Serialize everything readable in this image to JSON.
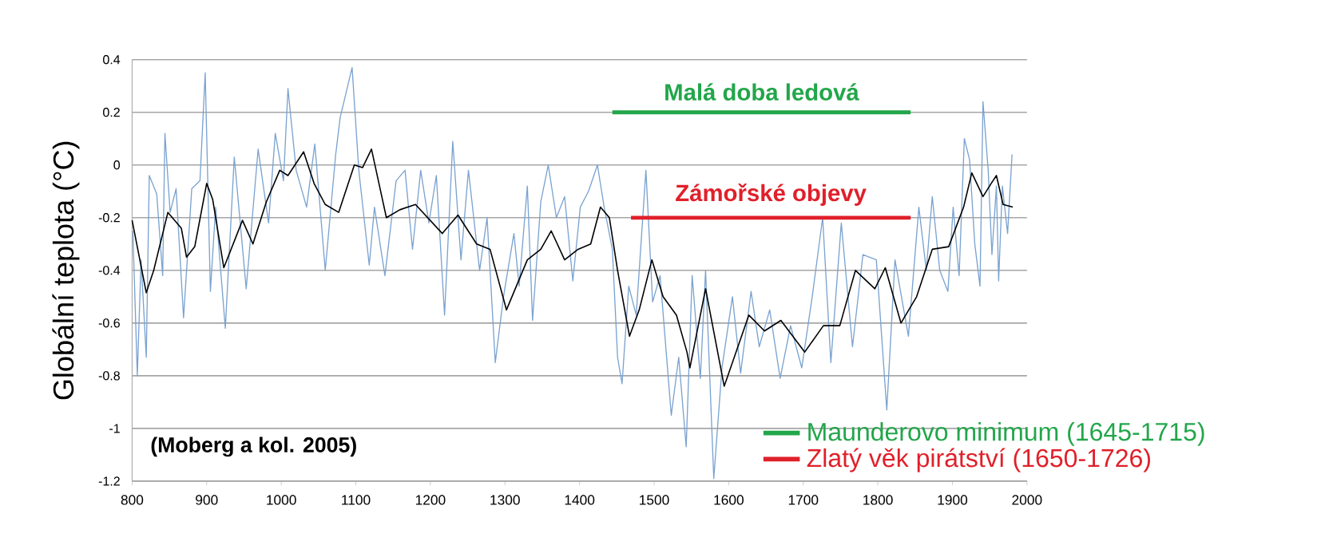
{
  "chart_data": {
    "type": "line",
    "ylabel": "Globální teplota (°C)",
    "xlim": [
      800,
      2000
    ],
    "xticks": [
      800,
      900,
      1000,
      1100,
      1200,
      1300,
      1400,
      1500,
      1600,
      1700,
      1800,
      1900,
      2000
    ],
    "ylim": [
      -1.2,
      0.4
    ],
    "yticks": [
      -1.2,
      -1,
      -0.8,
      -0.6,
      -0.4,
      -0.2,
      0,
      0.2,
      0.4
    ],
    "grid": "y",
    "legend": "bottom right",
    "line_style": "solid",
    "marker": "none",
    "annotations": [
      "(Moberg a kol. 2005)"
    ],
    "series": [
      {
        "color": "#7ba3d0",
        "x": [
          801,
          807,
          812,
          819,
          823,
          833,
          841,
          844,
          851,
          859,
          869,
          880,
          891,
          898,
          905,
          912,
          925,
          937,
          953,
          969,
          983,
          992,
          1003,
          1009,
          1020,
          1034,
          1045,
          1059,
          1073,
          1079,
          1095,
          1104,
          1118,
          1125,
          1139,
          1154,
          1166,
          1176,
          1187,
          1198,
          1208,
          1219,
          1230,
          1241,
          1251,
          1266,
          1276,
          1287,
          1298,
          1312,
          1319,
          1330,
          1337,
          1348,
          1358,
          1369,
          1380,
          1391,
          1401,
          1412,
          1424,
          1433,
          1444,
          1451,
          1457,
          1466,
          1476,
          1489,
          1498,
          1508,
          1523,
          1533,
          1543,
          1551,
          1562,
          1569,
          1580,
          1591,
          1605,
          1616,
          1630,
          1641,
          1655,
          1669,
          1683,
          1698,
          1712,
          1726,
          1737,
          1751,
          1766,
          1780,
          1798,
          1812,
          1823,
          1841,
          1855,
          1865,
          1873,
          1883,
          1894,
          1901,
          1909,
          1916,
          1923,
          1930,
          1937,
          1941,
          1948,
          1953,
          1959,
          1962,
          1967,
          1974,
          1980
        ],
        "values": [
          -0.25,
          -0.8,
          -0.36,
          -0.73,
          -0.04,
          -0.11,
          -0.42,
          0.12,
          -0.18,
          -0.09,
          -0.58,
          -0.09,
          -0.06,
          0.35,
          -0.48,
          -0.16,
          -0.62,
          0.03,
          -0.47,
          0.06,
          -0.22,
          0.12,
          -0.06,
          0.29,
          -0.02,
          -0.16,
          0.08,
          -0.4,
          0.04,
          0.18,
          0.37,
          -0.02,
          -0.38,
          -0.16,
          -0.42,
          -0.06,
          -0.02,
          -0.32,
          -0.02,
          -0.22,
          -0.04,
          -0.57,
          0.09,
          -0.36,
          -0.02,
          -0.4,
          -0.2,
          -0.75,
          -0.5,
          -0.26,
          -0.46,
          -0.08,
          -0.59,
          -0.14,
          0.0,
          -0.2,
          -0.12,
          -0.44,
          -0.16,
          -0.1,
          0.0,
          -0.16,
          -0.32,
          -0.73,
          -0.83,
          -0.46,
          -0.57,
          -0.02,
          -0.52,
          -0.42,
          -0.95,
          -0.73,
          -1.07,
          -0.42,
          -0.81,
          -0.4,
          -1.19,
          -0.77,
          -0.5,
          -0.79,
          -0.48,
          -0.69,
          -0.55,
          -0.81,
          -0.61,
          -0.77,
          -0.5,
          -0.2,
          -0.75,
          -0.22,
          -0.69,
          -0.34,
          -0.36,
          -0.93,
          -0.36,
          -0.65,
          -0.16,
          -0.4,
          -0.12,
          -0.4,
          -0.48,
          -0.16,
          -0.42,
          0.1,
          0.02,
          -0.3,
          -0.46,
          0.24,
          -0.02,
          -0.34,
          -0.08,
          -0.44,
          -0.08,
          -0.26,
          0.04
        ]
      },
      {
        "color": "#000000",
        "x": [
          800,
          819,
          829,
          848,
          866,
          873,
          884,
          900,
          908,
          923,
          948,
          962,
          980,
          998,
          1009,
          1030,
          1044,
          1059,
          1077,
          1098,
          1109,
          1121,
          1141,
          1159,
          1180,
          1216,
          1237,
          1262,
          1280,
          1302,
          1330,
          1348,
          1362,
          1380,
          1398,
          1415,
          1428,
          1440,
          1451,
          1467,
          1480,
          1497,
          1512,
          1530,
          1544,
          1548,
          1569,
          1594,
          1627,
          1648,
          1670,
          1702,
          1727,
          1749,
          1770,
          1796,
          1810,
          1831,
          1852,
          1873,
          1895,
          1915,
          1926,
          1941,
          1952,
          1959,
          1968,
          1981
        ],
        "values": [
          -0.21,
          -0.485,
          -0.4,
          -0.18,
          -0.24,
          -0.35,
          -0.31,
          -0.07,
          -0.13,
          -0.39,
          -0.21,
          -0.3,
          -0.14,
          -0.02,
          -0.04,
          0.05,
          -0.07,
          -0.15,
          -0.18,
          0.0,
          -0.01,
          0.06,
          -0.2,
          -0.17,
          -0.15,
          -0.26,
          -0.19,
          -0.3,
          -0.32,
          -0.55,
          -0.36,
          -0.32,
          -0.25,
          -0.36,
          -0.32,
          -0.3,
          -0.16,
          -0.2,
          -0.4,
          -0.65,
          -0.55,
          -0.36,
          -0.5,
          -0.57,
          -0.71,
          -0.77,
          -0.47,
          -0.84,
          -0.57,
          -0.63,
          -0.59,
          -0.71,
          -0.61,
          -0.61,
          -0.4,
          -0.47,
          -0.39,
          -0.6,
          -0.5,
          -0.32,
          -0.31,
          -0.16,
          -0.03,
          -0.12,
          -0.07,
          -0.04,
          -0.15,
          -0.16
        ]
      },
      {
        "name": "Malá doba ledová",
        "color": "#22a64a",
        "x": [
          1444,
          1844
        ],
        "values": [
          0.2,
          0.2
        ]
      },
      {
        "name": "Zámořské objevy",
        "color": "#e0202a",
        "x": [
          1469,
          1844
        ],
        "values": [
          -0.2,
          -0.2
        ]
      },
      {
        "name": "Maunderovo minimum  (1645-1715)",
        "color": "#22a64a"
      },
      {
        "name": "Zlatý věk pirátství (1650-1726)",
        "color": "#e0202a"
      }
    ]
  }
}
